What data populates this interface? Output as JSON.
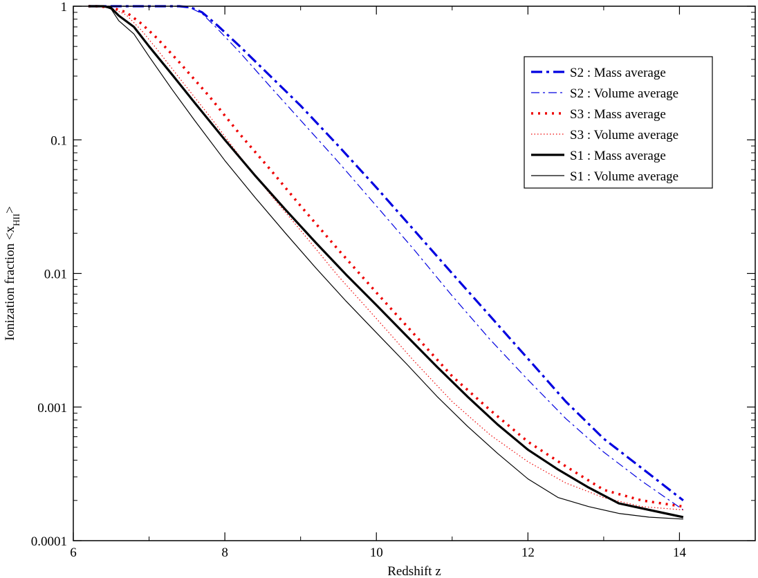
{
  "chart_data": {
    "type": "line",
    "title": "",
    "xlabel": "Redshift z",
    "ylabel_main": "Ionization fraction <x",
    "ylabel_sub": "HII",
    "ylabel_end": ">",
    "xlim": [
      6,
      15
    ],
    "ylim": [
      0.0001,
      1
    ],
    "yscale": "log",
    "grid": false,
    "legend_position": "top-right",
    "x_ticks": [
      {
        "value": 6,
        "label": "6"
      },
      {
        "value": 8,
        "label": "8"
      },
      {
        "value": 10,
        "label": "10"
      },
      {
        "value": 12,
        "label": "12"
      },
      {
        "value": 14,
        "label": "14"
      }
    ],
    "y_ticks": [
      {
        "value": 1,
        "label": "1"
      },
      {
        "value": 0.1,
        "label": "0.1"
      },
      {
        "value": 0.01,
        "label": "0.01"
      },
      {
        "value": 0.001,
        "label": "0.001"
      },
      {
        "value": 0.0001,
        "label": "0.0001"
      }
    ],
    "series": [
      {
        "name": "S2 : Mass average",
        "color": "#0000e0",
        "style": "dashdot-thick",
        "x": [
          6.2,
          7.4,
          7.55,
          7.7,
          7.9,
          8.2,
          8.6,
          9.0,
          9.5,
          10.0,
          10.5,
          11.0,
          11.5,
          12.0,
          12.5,
          13.0,
          13.5,
          14.05
        ],
        "y": [
          1.0,
          1.0,
          0.98,
          0.9,
          0.72,
          0.5,
          0.3,
          0.18,
          0.09,
          0.044,
          0.021,
          0.01,
          0.0048,
          0.0023,
          0.0011,
          0.00058,
          0.00035,
          0.0002
        ]
      },
      {
        "name": "S2 : Volume average",
        "color": "#0000e0",
        "style": "dashdot-thin",
        "x": [
          6.2,
          7.4,
          7.55,
          7.7,
          7.9,
          8.2,
          8.6,
          9.0,
          9.5,
          10.0,
          10.5,
          11.0,
          11.5,
          12.0,
          12.5,
          13.0,
          13.5,
          14.05
        ],
        "y": [
          1.0,
          1.0,
          0.97,
          0.88,
          0.68,
          0.45,
          0.25,
          0.14,
          0.068,
          0.032,
          0.015,
          0.0068,
          0.0032,
          0.0016,
          0.00082,
          0.00046,
          0.00028,
          0.00017
        ]
      },
      {
        "name": "S3 : Mass average",
        "color": "#ee0000",
        "style": "dotted-thick",
        "x": [
          6.2,
          6.3,
          6.5,
          6.7,
          6.9,
          7.1,
          7.4,
          7.8,
          8.2,
          8.6,
          9.0,
          9.5,
          10.0,
          10.5,
          11.0,
          11.5,
          12.0,
          12.5,
          13.0,
          13.5,
          14.05
        ],
        "y": [
          1.0,
          1.0,
          0.98,
          0.9,
          0.74,
          0.58,
          0.38,
          0.21,
          0.11,
          0.06,
          0.032,
          0.015,
          0.0072,
          0.0035,
          0.0017,
          0.00095,
          0.00055,
          0.00036,
          0.00024,
          0.0002,
          0.00018
        ]
      },
      {
        "name": "S3 : Volume average",
        "color": "#ee0000",
        "style": "dotted-thin",
        "x": [
          6.2,
          6.3,
          6.5,
          6.7,
          6.9,
          7.1,
          7.4,
          7.8,
          8.2,
          8.6,
          9.0,
          9.5,
          10.0,
          10.5,
          11.0,
          11.5,
          12.0,
          12.5,
          13.0,
          13.5,
          14.05
        ],
        "y": [
          1.0,
          1.0,
          0.97,
          0.86,
          0.66,
          0.48,
          0.29,
          0.15,
          0.075,
          0.039,
          0.021,
          0.0095,
          0.0046,
          0.0022,
          0.0011,
          0.00062,
          0.00039,
          0.00027,
          0.00021,
          0.00018,
          0.00017
        ]
      },
      {
        "name": "S1 : Mass average",
        "color": "#000000",
        "style": "solid-thick",
        "x": [
          6.2,
          6.3,
          6.4,
          6.5,
          6.6,
          6.8,
          7.0,
          7.3,
          7.6,
          8.0,
          8.4,
          8.8,
          9.2,
          9.6,
          10.0,
          10.4,
          10.8,
          11.2,
          11.6,
          12.0,
          12.4,
          12.8,
          13.2,
          13.6,
          14.05
        ],
        "y": [
          1.0,
          1.0,
          1.0,
          0.97,
          0.85,
          0.7,
          0.5,
          0.31,
          0.19,
          0.1,
          0.054,
          0.03,
          0.017,
          0.0098,
          0.0058,
          0.0034,
          0.002,
          0.0012,
          0.00074,
          0.00048,
          0.00034,
          0.00025,
          0.00019,
          0.00017,
          0.00015
        ]
      },
      {
        "name": "S1 : Volume average",
        "color": "#000000",
        "style": "solid-thin",
        "x": [
          6.2,
          6.3,
          6.4,
          6.5,
          6.6,
          6.8,
          7.0,
          7.3,
          7.6,
          8.0,
          8.4,
          8.8,
          9.2,
          9.6,
          10.0,
          10.4,
          10.8,
          11.2,
          11.6,
          12.0,
          12.4,
          12.8,
          13.2,
          13.6,
          14.05
        ],
        "y": [
          1.0,
          1.0,
          1.0,
          0.95,
          0.78,
          0.62,
          0.42,
          0.24,
          0.14,
          0.07,
          0.037,
          0.02,
          0.011,
          0.0062,
          0.0036,
          0.0021,
          0.0012,
          0.00072,
          0.00045,
          0.00029,
          0.00021,
          0.00018,
          0.00016,
          0.00015,
          0.000145
        ]
      }
    ]
  }
}
